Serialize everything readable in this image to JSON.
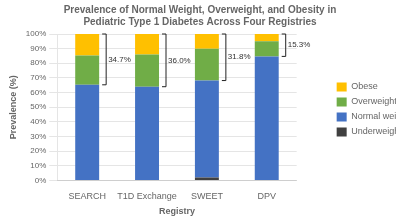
{
  "chart_data": {
    "type": "bar",
    "stacked": true,
    "title": [
      "Prevalence of Normal Weight, Overweight, and Obesity in",
      "Pediatric Type 1 Diabetes Across Four Registries"
    ],
    "xlabel": "Registry",
    "ylabel": "Prevalence (%)",
    "categories": [
      "SEARCH",
      "T1D Exchange",
      "SWEET",
      "DPV"
    ],
    "series": [
      {
        "name": "Underweight",
        "color": "#404040",
        "values": [
          0.0,
          0.0,
          2.0,
          0.0
        ]
      },
      {
        "name": "Normal weight",
        "color": "#4472C4",
        "values": [
          65.3,
          64.0,
          66.2,
          84.7
        ]
      },
      {
        "name": "Overweight",
        "color": "#70AD47",
        "values": [
          20.0,
          22.0,
          21.8,
          10.3
        ]
      },
      {
        "name": "Obese",
        "color": "#FFC000",
        "values": [
          14.7,
          14.0,
          10.0,
          5.0
        ]
      }
    ],
    "annotations": [
      "34.7%",
      "36.0%",
      "31.8%",
      "15.3%"
    ],
    "ylim": [
      0,
      100
    ],
    "yticks": [
      {
        "value": 0,
        "label": "0%"
      },
      {
        "value": 10,
        "label": "10%"
      },
      {
        "value": 20,
        "label": "20%"
      },
      {
        "value": 30,
        "label": "30%"
      },
      {
        "value": 40,
        "label": "40%"
      },
      {
        "value": 50,
        "label": "50%"
      },
      {
        "value": 60,
        "label": "60%"
      },
      {
        "value": 70,
        "label": "70%"
      },
      {
        "value": 80,
        "label": "80%"
      },
      {
        "value": 90,
        "label": "90%"
      },
      {
        "value": 100,
        "label": "100%"
      }
    ],
    "grid": true,
    "legend": "right"
  }
}
